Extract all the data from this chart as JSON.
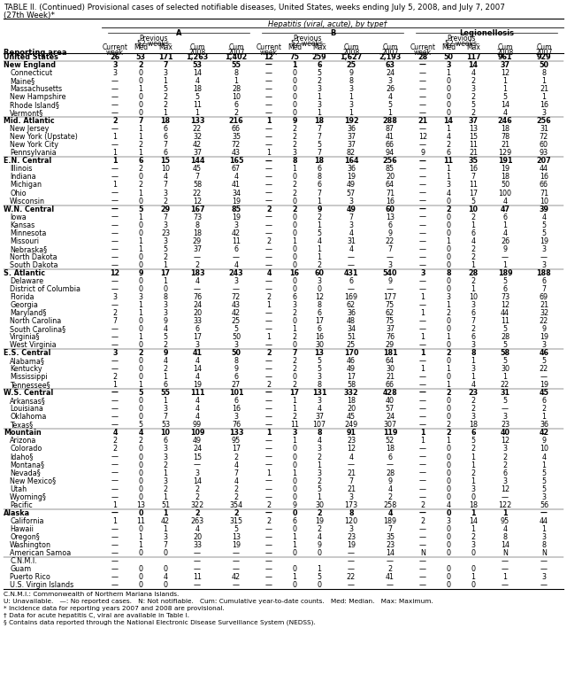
{
  "title_line1": "TABLE II. (Continued) Provisional cases of selected notifiable diseases, United States, weeks ending July 5, 2008, and July 7, 2007",
  "title_line2": "(27th Week)*",
  "section_header": "Hepatitis (viral, acute), by type†",
  "footnote1": "C.N.M.I.: Commonwealth of Northern Mariana Islands.",
  "footnote2": "U: Unavailable.   —: No reported cases.   N: Not notifiable.   Cum: Cumulative year-to-date counts.   Med: Median.   Max: Maximum.",
  "footnote3": "* Incidence data for reporting years 2007 and 2008 are provisional.",
  "footnote4": "† Data for acute hepatitis C, viral are available in Table I.",
  "footnote5": "§ Contains data reported through the National Electronic Disease Surveillance System (NEDSS).",
  "rows": [
    [
      "United States",
      "26",
      "53",
      "171",
      "1,263",
      "1,402",
      "12",
      "75",
      "259",
      "1,627",
      "2,193",
      "28",
      "50",
      "117",
      "961",
      "929"
    ],
    [
      "New England",
      "3",
      "2",
      "7",
      "53",
      "55",
      "—",
      "1",
      "6",
      "25",
      "63",
      "—",
      "3",
      "14",
      "37",
      "50"
    ],
    [
      "Connecticut",
      "3",
      "0",
      "3",
      "14",
      "8",
      "—",
      "0",
      "5",
      "9",
      "24",
      "—",
      "1",
      "4",
      "12",
      "8"
    ],
    [
      "Maine§",
      "—",
      "0",
      "1",
      "4",
      "1",
      "—",
      "0",
      "2",
      "8",
      "3",
      "—",
      "0",
      "2",
      "1",
      "1"
    ],
    [
      "Massachusetts",
      "—",
      "1",
      "5",
      "18",
      "28",
      "—",
      "0",
      "3",
      "3",
      "26",
      "—",
      "0",
      "3",
      "1",
      "21"
    ],
    [
      "New Hampshire",
      "—",
      "0",
      "2",
      "5",
      "10",
      "—",
      "0",
      "1",
      "1",
      "4",
      "—",
      "0",
      "2",
      "5",
      "1"
    ],
    [
      "Rhode Island§",
      "—",
      "0",
      "2",
      "11",
      "6",
      "—",
      "0",
      "3",
      "3",
      "5",
      "—",
      "0",
      "5",
      "14",
      "16"
    ],
    [
      "Vermont§",
      "—",
      "0",
      "1",
      "1",
      "2",
      "—",
      "0",
      "1",
      "1",
      "1",
      "—",
      "0",
      "2",
      "4",
      "3"
    ],
    [
      "Mid. Atlantic",
      "2",
      "7",
      "18",
      "133",
      "216",
      "1",
      "9",
      "18",
      "192",
      "288",
      "21",
      "14",
      "37",
      "246",
      "256"
    ],
    [
      "New Jersey",
      "—",
      "1",
      "6",
      "22",
      "66",
      "—",
      "2",
      "7",
      "36",
      "87",
      "—",
      "1",
      "13",
      "18",
      "31"
    ],
    [
      "New York (Upstate)",
      "1",
      "1",
      "6",
      "32",
      "35",
      "—",
      "2",
      "7",
      "37",
      "41",
      "12",
      "4",
      "15",
      "78",
      "72"
    ],
    [
      "New York City",
      "—",
      "2",
      "7",
      "42",
      "72",
      "—",
      "2",
      "5",
      "37",
      "66",
      "—",
      "2",
      "11",
      "21",
      "60"
    ],
    [
      "Pennsylvania",
      "1",
      "1",
      "6",
      "37",
      "43",
      "1",
      "3",
      "7",
      "82",
      "94",
      "9",
      "6",
      "21",
      "129",
      "93"
    ],
    [
      "E.N. Central",
      "1",
      "6",
      "15",
      "144",
      "165",
      "—",
      "8",
      "18",
      "164",
      "256",
      "—",
      "11",
      "35",
      "191",
      "207"
    ],
    [
      "Illinois",
      "—",
      "2",
      "10",
      "45",
      "67",
      "—",
      "1",
      "6",
      "36",
      "85",
      "—",
      "1",
      "16",
      "19",
      "44"
    ],
    [
      "Indiana",
      "—",
      "0",
      "4",
      "7",
      "4",
      "—",
      "0",
      "8",
      "19",
      "20",
      "—",
      "1",
      "7",
      "18",
      "16"
    ],
    [
      "Michigan",
      "1",
      "2",
      "7",
      "58",
      "41",
      "—",
      "2",
      "6",
      "49",
      "64",
      "—",
      "3",
      "11",
      "50",
      "66"
    ],
    [
      "Ohio",
      "—",
      "1",
      "3",
      "22",
      "34",
      "—",
      "2",
      "7",
      "57",
      "71",
      "—",
      "4",
      "17",
      "100",
      "71"
    ],
    [
      "Wisconsin",
      "—",
      "0",
      "2",
      "12",
      "19",
      "—",
      "0",
      "1",
      "3",
      "16",
      "—",
      "0",
      "5",
      "4",
      "10"
    ],
    [
      "W.N. Central",
      "—",
      "5",
      "29",
      "167",
      "85",
      "2",
      "2",
      "9",
      "49",
      "60",
      "—",
      "2",
      "10",
      "47",
      "39"
    ],
    [
      "Iowa",
      "—",
      "1",
      "7",
      "73",
      "19",
      "—",
      "0",
      "2",
      "7",
      "13",
      "—",
      "0",
      "2",
      "6",
      "4"
    ],
    [
      "Kansas",
      "—",
      "0",
      "3",
      "8",
      "3",
      "—",
      "0",
      "1",
      "3",
      "6",
      "—",
      "0",
      "1",
      "1",
      "5"
    ],
    [
      "Minnesota",
      "—",
      "0",
      "23",
      "18",
      "42",
      "—",
      "0",
      "5",
      "4",
      "9",
      "—",
      "0",
      "6",
      "4",
      "5"
    ],
    [
      "Missouri",
      "—",
      "1",
      "3",
      "29",
      "11",
      "2",
      "1",
      "4",
      "31",
      "22",
      "—",
      "1",
      "4",
      "26",
      "19"
    ],
    [
      "Nebraska§",
      "—",
      "1",
      "5",
      "37",
      "6",
      "—",
      "0",
      "1",
      "4",
      "7",
      "—",
      "0",
      "2",
      "9",
      "3"
    ],
    [
      "North Dakota",
      "—",
      "0",
      "2",
      "—",
      "—",
      "—",
      "0",
      "1",
      "—",
      "—",
      "—",
      "0",
      "2",
      "—",
      "—"
    ],
    [
      "South Dakota",
      "—",
      "0",
      "1",
      "2",
      "4",
      "—",
      "0",
      "2",
      "—",
      "3",
      "—",
      "0",
      "1",
      "1",
      "3"
    ],
    [
      "S. Atlantic",
      "12",
      "9",
      "17",
      "183",
      "243",
      "4",
      "16",
      "60",
      "431",
      "540",
      "3",
      "8",
      "28",
      "189",
      "188"
    ],
    [
      "Delaware",
      "—",
      "0",
      "1",
      "4",
      "3",
      "—",
      "0",
      "3",
      "6",
      "9",
      "—",
      "0",
      "2",
      "5",
      "6"
    ],
    [
      "District of Columbia",
      "—",
      "0",
      "0",
      "—",
      "—",
      "—",
      "0",
      "0",
      "—",
      "—",
      "—",
      "0",
      "1",
      "6",
      "7"
    ],
    [
      "Florida",
      "3",
      "3",
      "8",
      "76",
      "72",
      "2",
      "6",
      "12",
      "169",
      "177",
      "1",
      "3",
      "10",
      "73",
      "69"
    ],
    [
      "Georgia",
      "—",
      "1",
      "3",
      "24",
      "43",
      "1",
      "3",
      "8",
      "62",
      "75",
      "—",
      "1",
      "3",
      "12",
      "21"
    ],
    [
      "Maryland§",
      "2",
      "1",
      "3",
      "20",
      "42",
      "—",
      "2",
      "6",
      "36",
      "62",
      "1",
      "2",
      "6",
      "44",
      "32"
    ],
    [
      "North Carolina",
      "7",
      "0",
      "9",
      "33",
      "25",
      "—",
      "0",
      "17",
      "48",
      "75",
      "—",
      "0",
      "7",
      "11",
      "22"
    ],
    [
      "South Carolina§",
      "—",
      "0",
      "4",
      "6",
      "5",
      "—",
      "1",
      "6",
      "34",
      "37",
      "—",
      "0",
      "2",
      "5",
      "9"
    ],
    [
      "Virginia§",
      "—",
      "1",
      "5",
      "17",
      "50",
      "1",
      "2",
      "16",
      "51",
      "76",
      "1",
      "1",
      "6",
      "28",
      "19"
    ],
    [
      "West Virginia",
      "—",
      "0",
      "2",
      "3",
      "3",
      "—",
      "0",
      "30",
      "25",
      "29",
      "—",
      "0",
      "3",
      "5",
      "3"
    ],
    [
      "E.S. Central",
      "3",
      "2",
      "9",
      "41",
      "50",
      "2",
      "7",
      "13",
      "170",
      "181",
      "1",
      "2",
      "8",
      "58",
      "46"
    ],
    [
      "Alabama§",
      "—",
      "0",
      "4",
      "4",
      "8",
      "—",
      "2",
      "5",
      "46",
      "64",
      "—",
      "0",
      "1",
      "5",
      "5"
    ],
    [
      "Kentucky",
      "—",
      "0",
      "2",
      "14",
      "9",
      "—",
      "2",
      "5",
      "49",
      "30",
      "1",
      "1",
      "3",
      "30",
      "22"
    ],
    [
      "Mississippi",
      "2",
      "0",
      "1",
      "4",
      "6",
      "—",
      "0",
      "3",
      "17",
      "21",
      "—",
      "0",
      "1",
      "1",
      "—"
    ],
    [
      "Tennessee§",
      "1",
      "1",
      "6",
      "19",
      "27",
      "2",
      "2",
      "8",
      "58",
      "66",
      "—",
      "1",
      "4",
      "22",
      "19"
    ],
    [
      "W.S. Central",
      "—",
      "5",
      "55",
      "111",
      "101",
      "—",
      "17",
      "131",
      "332",
      "428",
      "—",
      "2",
      "23",
      "31",
      "45"
    ],
    [
      "Arkansas§",
      "—",
      "0",
      "1",
      "4",
      "6",
      "—",
      "1",
      "3",
      "18",
      "40",
      "—",
      "0",
      "2",
      "5",
      "6"
    ],
    [
      "Louisiana",
      "—",
      "0",
      "3",
      "4",
      "16",
      "—",
      "1",
      "4",
      "20",
      "57",
      "—",
      "0",
      "2",
      "—",
      "2"
    ],
    [
      "Oklahoma",
      "—",
      "0",
      "7",
      "4",
      "3",
      "—",
      "2",
      "37",
      "45",
      "24",
      "—",
      "0",
      "3",
      "3",
      "1"
    ],
    [
      "Texas§",
      "—",
      "5",
      "53",
      "99",
      "76",
      "—",
      "11",
      "107",
      "249",
      "307",
      "—",
      "2",
      "18",
      "23",
      "36"
    ],
    [
      "Mountain",
      "4",
      "4",
      "10",
      "109",
      "133",
      "1",
      "3",
      "8",
      "91",
      "119",
      "1",
      "2",
      "6",
      "40",
      "42"
    ],
    [
      "Arizona",
      "2",
      "2",
      "6",
      "49",
      "95",
      "—",
      "1",
      "4",
      "23",
      "52",
      "1",
      "1",
      "5",
      "12",
      "9"
    ],
    [
      "Colorado",
      "2",
      "0",
      "3",
      "24",
      "17",
      "—",
      "0",
      "3",
      "12",
      "18",
      "—",
      "0",
      "2",
      "3",
      "10"
    ],
    [
      "Idaho§",
      "—",
      "0",
      "3",
      "15",
      "2",
      "—",
      "0",
      "2",
      "4",
      "6",
      "—",
      "0",
      "1",
      "2",
      "4"
    ],
    [
      "Montana§",
      "—",
      "0",
      "2",
      "—",
      "4",
      "—",
      "0",
      "1",
      "—",
      "—",
      "—",
      "0",
      "1",
      "2",
      "1"
    ],
    [
      "Nevada§",
      "—",
      "0",
      "1",
      "3",
      "7",
      "1",
      "1",
      "3",
      "21",
      "28",
      "—",
      "0",
      "2",
      "6",
      "5"
    ],
    [
      "New Mexico§",
      "—",
      "0",
      "3",
      "14",
      "4",
      "—",
      "0",
      "2",
      "7",
      "9",
      "—",
      "0",
      "1",
      "3",
      "5"
    ],
    [
      "Utah",
      "—",
      "0",
      "2",
      "2",
      "2",
      "—",
      "0",
      "5",
      "21",
      "4",
      "—",
      "0",
      "3",
      "12",
      "5"
    ],
    [
      "Wyoming§",
      "—",
      "0",
      "1",
      "2",
      "2",
      "—",
      "0",
      "1",
      "3",
      "2",
      "—",
      "0",
      "0",
      "—",
      "3"
    ],
    [
      "Pacific",
      "1",
      "13",
      "51",
      "322",
      "354",
      "2",
      "9",
      "30",
      "173",
      "258",
      "2",
      "4",
      "18",
      "122",
      "56"
    ],
    [
      "Alaska",
      "—",
      "0",
      "1",
      "2",
      "2",
      "—",
      "0",
      "2",
      "8",
      "4",
      "—",
      "0",
      "1",
      "1",
      "—"
    ],
    [
      "California",
      "1",
      "11",
      "42",
      "263",
      "315",
      "2",
      "6",
      "19",
      "120",
      "189",
      "2",
      "3",
      "14",
      "95",
      "44"
    ],
    [
      "Hawaii",
      "—",
      "0",
      "1",
      "4",
      "5",
      "—",
      "0",
      "2",
      "3",
      "7",
      "—",
      "0",
      "1",
      "4",
      "1"
    ],
    [
      "Oregon§",
      "—",
      "1",
      "3",
      "20",
      "13",
      "—",
      "1",
      "4",
      "23",
      "35",
      "—",
      "0",
      "2",
      "8",
      "3"
    ],
    [
      "Washington",
      "—",
      "1",
      "7",
      "33",
      "19",
      "—",
      "1",
      "9",
      "19",
      "23",
      "—",
      "0",
      "3",
      "14",
      "8"
    ],
    [
      "American Samoa",
      "—",
      "0",
      "0",
      "—",
      "—",
      "—",
      "0",
      "0",
      "—",
      "14",
      "N",
      "0",
      "0",
      "N",
      "N"
    ],
    [
      "C.N.M.I.",
      "—",
      "",
      "",
      "—",
      "—",
      "—",
      "",
      "",
      "—",
      "—",
      "—",
      "",
      "",
      "—",
      "—"
    ],
    [
      "Guam",
      "—",
      "0",
      "0",
      "—",
      "—",
      "—",
      "0",
      "1",
      "—",
      "2",
      "—",
      "0",
      "0",
      "—",
      "—"
    ],
    [
      "Puerto Rico",
      "—",
      "0",
      "4",
      "11",
      "42",
      "—",
      "1",
      "5",
      "22",
      "41",
      "—",
      "0",
      "1",
      "1",
      "3"
    ],
    [
      "U.S. Virgin Islands",
      "—",
      "0",
      "0",
      "—",
      "—",
      "—",
      "0",
      "0",
      "—",
      "—",
      "—",
      "0",
      "0",
      "—",
      "—"
    ]
  ],
  "bold_rows": [
    0,
    1,
    8,
    13,
    19,
    27,
    37,
    42,
    47,
    57
  ],
  "separator_before": [
    1,
    8,
    13,
    19,
    27,
    37,
    42,
    47,
    57,
    63
  ]
}
